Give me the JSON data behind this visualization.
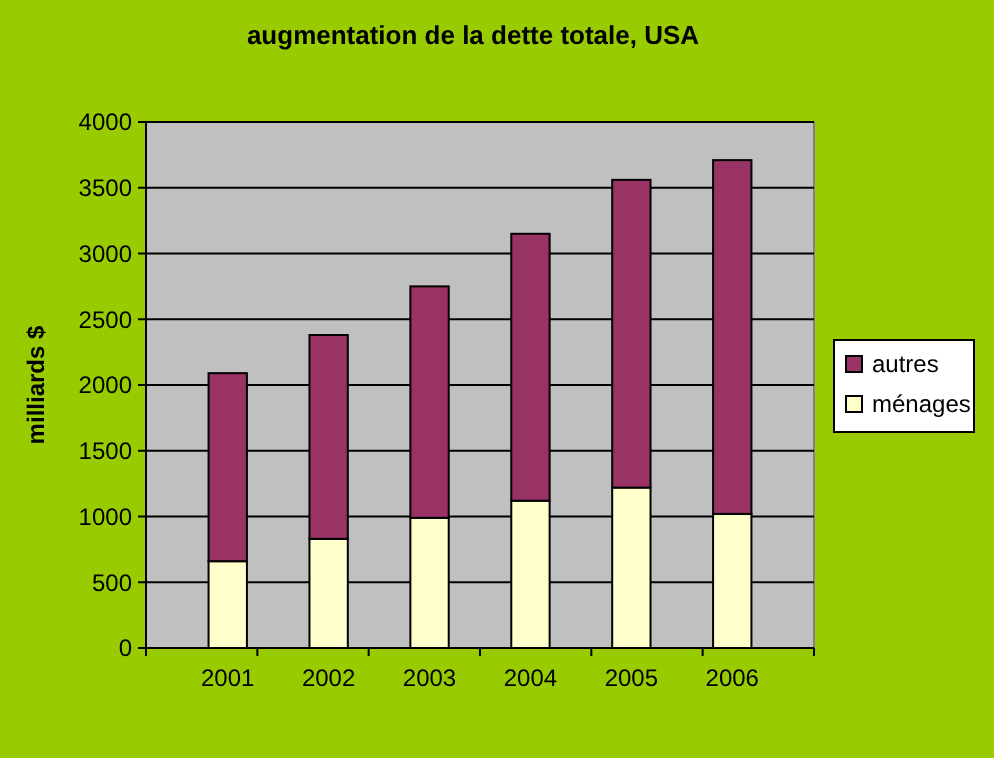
{
  "chart_data": {
    "type": "bar",
    "title": "augmentation de la dette totale, USA",
    "ylabel": "milliards $",
    "categories": [
      "2001",
      "2002",
      "2003",
      "2004",
      "2005",
      "2006"
    ],
    "stacked": true,
    "series": [
      {
        "name": "ménages",
        "color": "#ffffcc",
        "values": [
          660,
          830,
          990,
          1120,
          1220,
          1020
        ]
      },
      {
        "name": "autres",
        "color": "#993366",
        "values": [
          1430,
          1550,
          1760,
          2030,
          2340,
          2690
        ]
      }
    ],
    "ylim": [
      0,
      4000
    ],
    "yticks": [
      0,
      500,
      1000,
      1500,
      2000,
      2500,
      3000,
      3500,
      4000
    ],
    "grid": "y",
    "legend": "right"
  }
}
